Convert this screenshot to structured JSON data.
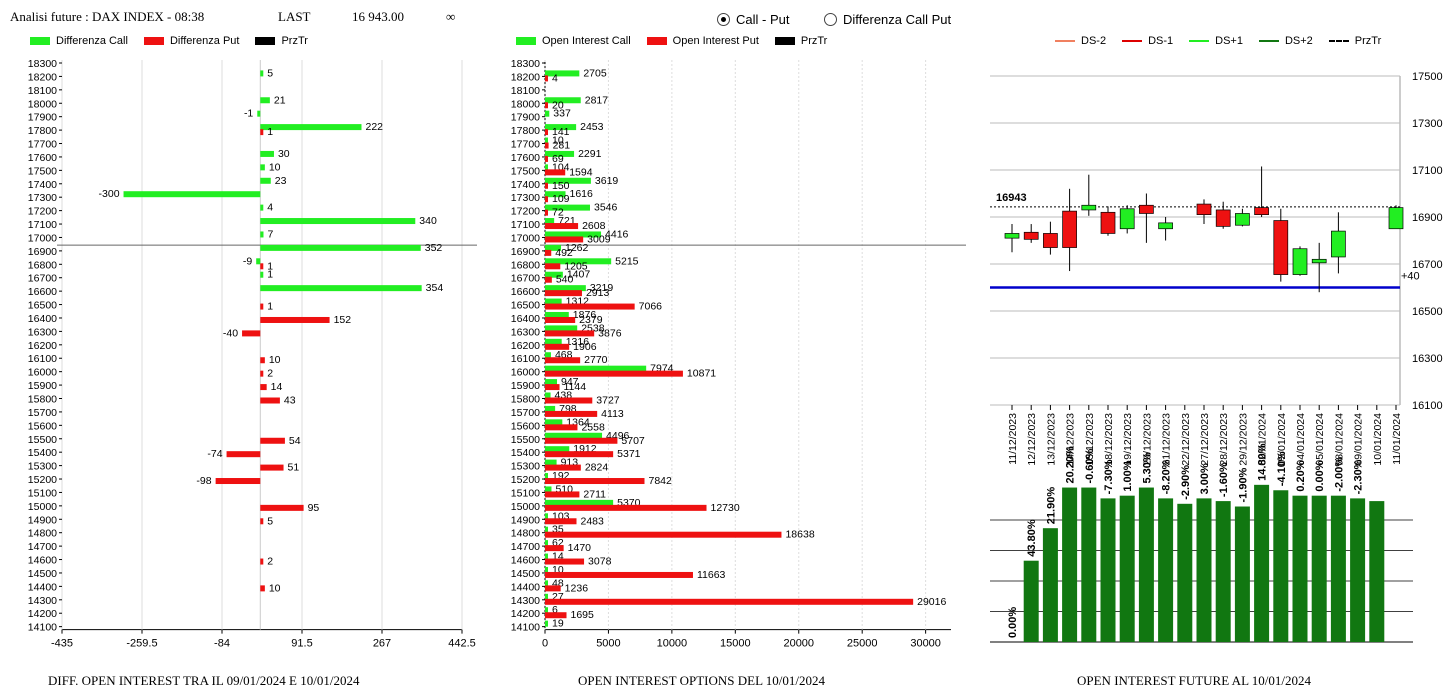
{
  "header": {
    "title": "Analisi future : DAX INDEX - 08:38",
    "last_label": "LAST",
    "last_value": "16 943.00",
    "infinity": "∞"
  },
  "options": {
    "call_put": "Call - Put",
    "diff_call_put": "Differenza Call Put",
    "selected": "Call - Put"
  },
  "colors": {
    "green": "#22ee22",
    "red": "#ee1111",
    "black": "#000000",
    "dark_green": "#117711",
    "blue": "#0000cc"
  },
  "legends": {
    "diff": [
      "Differenza Call",
      "Differenza Put",
      "PrzTr"
    ],
    "oi": [
      "Open Interest Call",
      "Open Interest Put",
      "PrzTr"
    ],
    "future": [
      "DS-2",
      "DS-1",
      "DS+1",
      "DS+2",
      "PrzTr"
    ]
  },
  "footers": {
    "diff": "DIFF. OPEN INTEREST TRA IL 09/01/2024 E 10/01/2024",
    "oi": "OPEN INTEREST OPTIONS DEL 10/01/2024",
    "future": "OPEN INTEREST FUTURE AL 10/01/2024"
  },
  "chart_data": [
    {
      "type": "bar",
      "orientation": "horizontal",
      "strikes": [
        18300,
        18200,
        18100,
        18000,
        17900,
        17800,
        17700,
        17600,
        17500,
        17400,
        17300,
        17200,
        17100,
        17000,
        16900,
        16800,
        16700,
        16600,
        16500,
        16400,
        16300,
        16200,
        16100,
        16000,
        15900,
        15800,
        15700,
        15600,
        15500,
        15400,
        15300,
        15200,
        15100,
        15000,
        14900,
        14800,
        14700,
        14600,
        14500,
        14400,
        14300,
        14200,
        14100
      ],
      "series": [
        {
          "name": "Differenza Call",
          "values": [
            null,
            5,
            null,
            21,
            -1,
            222,
            null,
            30,
            10,
            23,
            -300,
            4,
            340,
            7,
            352,
            -9,
            1,
            354,
            null,
            null,
            null,
            null,
            null,
            null,
            null,
            null,
            null,
            null,
            null,
            null,
            null,
            null,
            null,
            null,
            null,
            null,
            null,
            null,
            null,
            null,
            null,
            null,
            null
          ]
        },
        {
          "name": "Differenza Put",
          "values": [
            null,
            null,
            null,
            null,
            null,
            1,
            null,
            null,
            null,
            null,
            null,
            null,
            null,
            null,
            null,
            1,
            null,
            null,
            1,
            152,
            -40,
            null,
            10,
            2,
            14,
            43,
            null,
            null,
            54,
            -74,
            51,
            -98,
            null,
            95,
            5,
            null,
            null,
            2,
            null,
            10,
            null,
            null,
            null
          ]
        }
      ],
      "xticks": [
        "-435",
        "-259.5",
        "-84",
        "91.5",
        "267",
        "442.5"
      ],
      "xlim": [
        -435,
        442.5
      ],
      "przTr": 16943
    },
    {
      "type": "bar",
      "orientation": "horizontal",
      "strikes": [
        18300,
        18200,
        18100,
        18000,
        17900,
        17800,
        17700,
        17600,
        17500,
        17400,
        17300,
        17200,
        17100,
        17000,
        16900,
        16800,
        16700,
        16600,
        16500,
        16400,
        16300,
        16200,
        16100,
        16000,
        15900,
        15800,
        15700,
        15600,
        15500,
        15400,
        15300,
        15200,
        15100,
        15000,
        14900,
        14800,
        14700,
        14600,
        14500,
        14400,
        14300,
        14200,
        14100
      ],
      "series": [
        {
          "name": "Open Interest Call",
          "values": [
            null,
            2705,
            null,
            2817,
            337,
            2453,
            10,
            2291,
            104,
            3619,
            1616,
            3546,
            721,
            4416,
            1262,
            5215,
            1407,
            3219,
            1312,
            1876,
            2538,
            1316,
            468,
            7974,
            947,
            438,
            798,
            1364,
            4496,
            1912,
            913,
            192,
            510,
            5370,
            103,
            35,
            62,
            14,
            10,
            48,
            27,
            6,
            19
          ]
        },
        {
          "name": "Open Interest Put",
          "values": [
            null,
            4,
            null,
            20,
            null,
            141,
            281,
            69,
            1594,
            150,
            109,
            72,
            2608,
            3009,
            492,
            1205,
            540,
            2913,
            7066,
            2379,
            3876,
            1906,
            2770,
            10871,
            1144,
            3727,
            4113,
            2558,
            5707,
            5371,
            2824,
            7842,
            2711,
            12730,
            2483,
            18638,
            1470,
            3078,
            11663,
            1236,
            29016,
            1695,
            null
          ]
        }
      ],
      "xticks": [
        "0",
        "5000",
        "10000",
        "15000",
        "20000",
        "25000",
        "30000"
      ],
      "xlim": [
        0,
        32000
      ],
      "przTr": 16943
    },
    {
      "type": "candlestick",
      "dates": [
        "11/12/2023",
        "12/12/2023",
        "13/12/2023",
        "14/12/2023",
        "15/12/2023",
        "18/12/2023",
        "19/12/2023",
        "20/12/2023",
        "21/12/2023",
        "22/12/2023",
        "27/12/2023",
        "28/12/2023",
        "29/12/2023",
        "02/01/2024",
        "03/01/2024",
        "04/01/2024",
        "05/01/2024",
        "08/01/2024",
        "09/01/2024",
        "10/01/2024",
        "11/01/2024"
      ],
      "candles": [
        {
          "o": 16810,
          "h": 16870,
          "l": 16750,
          "c": 16830
        },
        {
          "o": 16835,
          "h": 16870,
          "l": 16790,
          "c": 16805
        },
        {
          "o": 16830,
          "h": 16880,
          "l": 16740,
          "c": 16770
        },
        {
          "o": 16925,
          "h": 17020,
          "l": 16670,
          "c": 16770
        },
        {
          "o": 16930,
          "h": 17080,
          "l": 16905,
          "c": 16950
        },
        {
          "o": 16920,
          "h": 16945,
          "l": 16820,
          "c": 16830
        },
        {
          "o": 16850,
          "h": 16950,
          "l": 16830,
          "c": 16935
        },
        {
          "o": 16950,
          "h": 17000,
          "l": 16790,
          "c": 16915
        },
        {
          "o": 16850,
          "h": 16900,
          "l": 16800,
          "c": 16875
        },
        null,
        {
          "o": 16955,
          "h": 16975,
          "l": 16870,
          "c": 16910
        },
        {
          "o": 16930,
          "h": 16965,
          "l": 16850,
          "c": 16860
        },
        {
          "o": 16865,
          "h": 16935,
          "l": 16860,
          "c": 16915
        },
        {
          "o": 16940,
          "h": 17115,
          "l": 16900,
          "c": 16910
        },
        {
          "o": 16885,
          "h": 16935,
          "l": 16625,
          "c": 16655
        },
        {
          "o": 16655,
          "h": 16775,
          "l": 16650,
          "c": 16765
        },
        {
          "o": 16705,
          "h": 16790,
          "l": 16580,
          "c": 16720
        },
        {
          "o": 16730,
          "h": 16920,
          "l": 16660,
          "c": 16840
        },
        null,
        null,
        {
          "o": 16850,
          "h": 16950,
          "l": 16850,
          "c": 16940
        }
      ],
      "yticks": [
        "17500",
        "17300",
        "17100",
        "16900",
        "16700",
        "16500",
        "16300",
        "16100"
      ],
      "ylim": [
        16100,
        17500
      ],
      "przTr": 16943,
      "przTr_label": "16943",
      "ds_level": 16600,
      "ds_label": "+40"
    },
    {
      "type": "bar",
      "categories": [
        "11/12/2023",
        "12/12/2023",
        "13/12/2023",
        "14/12/2023",
        "15/12/2023",
        "18/12/2023",
        "19/12/2023",
        "20/12/2023",
        "21/12/2023",
        "22/12/2023",
        "27/12/2023",
        "28/12/2023",
        "29/12/2023",
        "02/01/2024",
        "03/01/2024",
        "04/01/2024",
        "05/01/2024",
        "08/01/2024",
        "09/01/2024",
        "10/01/2024"
      ],
      "values": [
        0,
        30,
        42,
        57,
        57,
        53,
        54,
        57,
        53,
        51,
        53,
        52,
        50,
        58,
        56,
        54,
        54,
        54,
        53,
        52
      ],
      "labels": [
        "0.00%",
        "43.80%",
        "21.90%",
        "20.20%",
        "-0.60%",
        "-7.30%",
        "1.00%",
        "5.30%",
        "-8.20%",
        "-2.90%",
        "3.00%",
        "-1.60%",
        "-1.90%",
        "14.80%",
        "-4.10%",
        "0.20%",
        "0.00%",
        "-2.00%",
        "-2.30%",
        ""
      ]
    }
  ]
}
